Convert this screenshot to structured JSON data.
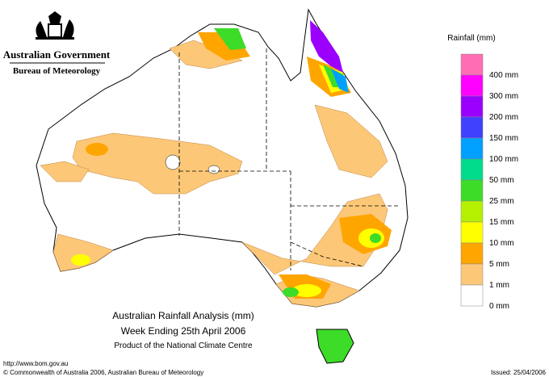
{
  "header": {
    "government": "Australian Government",
    "agency": "Bureau of Meteorology"
  },
  "legend": {
    "title": "Rainfall (mm)",
    "colors": [
      "#ff6eb4",
      "#ff00ff",
      "#9b00ff",
      "#4040ff",
      "#00a0ff",
      "#00dc8c",
      "#3cdc28",
      "#b4f000",
      "#ffff00",
      "#ffa500",
      "#fcc878",
      "#ffffff"
    ],
    "labels": [
      "400 mm",
      "300 mm",
      "200 mm",
      "150 mm",
      "100 mm",
      "50 mm",
      "25 mm",
      "15 mm",
      "10 mm",
      "5 mm",
      "1 mm",
      "0 mm"
    ]
  },
  "title": {
    "line1": "Australian Rainfall Analysis (mm)",
    "line2": "Week Ending 25th April 2006",
    "line3": "Product of the National Climate Centre"
  },
  "footer": {
    "url": "http://www.bom.gov.au",
    "copyright": "© Commonwealth of Australia 2006, Australian Bureau of Meteorology",
    "issued": "Issued: 25/04/2006"
  }
}
